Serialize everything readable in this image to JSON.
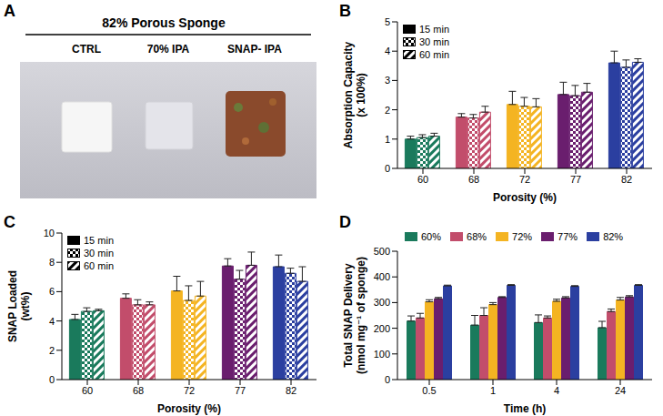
{
  "chart_data": [
    {
      "type": "image",
      "panel": "A",
      "title": "82% Porous Sponge",
      "labels": [
        "CTRL",
        "70% IPA",
        "SNAP- IPA"
      ]
    },
    {
      "type": "bar",
      "panel": "B",
      "x_label": "Porosity (%)",
      "y_label": "Absorption Capacity (x 100%)",
      "categories": [
        60,
        68,
        72,
        77,
        82
      ],
      "colors": [
        "#1a7a5c",
        "#c24d6b",
        "#f4b422",
        "#6a1e6e",
        "#2b3fa0"
      ],
      "ylim": [
        0,
        5
      ],
      "yticks": [
        0,
        1,
        2,
        3,
        4,
        5
      ],
      "legend": "upper left",
      "series": [
        {
          "name": "15 min",
          "marker": "solid",
          "values": [
            1.0,
            1.75,
            2.18,
            2.52,
            3.6
          ],
          "errors": [
            0.1,
            0.12,
            0.45,
            0.42,
            0.4
          ]
        },
        {
          "name": "30 min",
          "marker": "checkered",
          "values": [
            1.05,
            1.72,
            2.12,
            2.48,
            3.45
          ],
          "errors": [
            0.1,
            0.12,
            0.3,
            0.35,
            0.25
          ]
        },
        {
          "name": "60 min",
          "marker": "striped",
          "values": [
            1.1,
            1.92,
            2.1,
            2.6,
            3.62
          ],
          "errors": [
            0.1,
            0.2,
            0.28,
            0.3,
            0.12
          ]
        }
      ]
    },
    {
      "type": "bar",
      "panel": "C",
      "x_label": "Porosity (%)",
      "y_label": "SNAP Loaded (wt%)",
      "categories": [
        60,
        68,
        72,
        77,
        82
      ],
      "colors": [
        "#1a7a5c",
        "#c24d6b",
        "#f4b422",
        "#6a1e6e",
        "#2b3fa0"
      ],
      "ylim": [
        0,
        10
      ],
      "yticks": [
        0,
        2,
        4,
        6,
        8,
        10
      ],
      "legend": "upper left",
      "series": [
        {
          "name": "15 min",
          "marker": "solid",
          "values": [
            4.1,
            5.55,
            6.05,
            7.75,
            7.7
          ],
          "errors": [
            0.35,
            0.3,
            1.0,
            0.5,
            0.8
          ]
        },
        {
          "name": "30 min",
          "marker": "checkered",
          "values": [
            4.65,
            5.1,
            5.4,
            6.85,
            7.25
          ],
          "errors": [
            0.25,
            0.35,
            1.0,
            0.6,
            0.35
          ]
        },
        {
          "name": "60 min",
          "marker": "striped",
          "values": [
            4.7,
            5.1,
            5.7,
            7.8,
            6.7
          ],
          "errors": [
            0.1,
            0.2,
            1.0,
            0.9,
            1.0
          ]
        }
      ]
    },
    {
      "type": "bar",
      "panel": "D",
      "x_label": "Time (h)",
      "y_label": "Total SNAP Delivery (nmol mg⁻¹ of sponge)",
      "categories": [
        0.5,
        1,
        4,
        24
      ],
      "ylim": [
        0,
        500
      ],
      "yticks": [
        0,
        100,
        200,
        300,
        400,
        500
      ],
      "legend": "top",
      "series": [
        {
          "name": "60%",
          "color": "#1a7a5c",
          "values": [
            228,
            212,
            222,
            202
          ],
          "errors": [
            20,
            38,
            30,
            25
          ]
        },
        {
          "name": "68%",
          "color": "#c24d6b",
          "values": [
            240,
            250,
            240,
            265
          ],
          "errors": [
            18,
            30,
            8,
            10
          ]
        },
        {
          "name": "72%",
          "color": "#f4b422",
          "values": [
            303,
            292,
            305,
            310
          ],
          "errors": [
            8,
            8,
            8,
            10
          ]
        },
        {
          "name": "77%",
          "color": "#6a1e6e",
          "values": [
            315,
            320,
            318,
            322
          ],
          "errors": [
            5,
            3,
            5,
            5
          ]
        },
        {
          "name": "82%",
          "color": "#2b3fa0",
          "values": [
            365,
            367,
            363,
            367
          ],
          "errors": [
            3,
            3,
            3,
            3
          ]
        }
      ]
    }
  ]
}
